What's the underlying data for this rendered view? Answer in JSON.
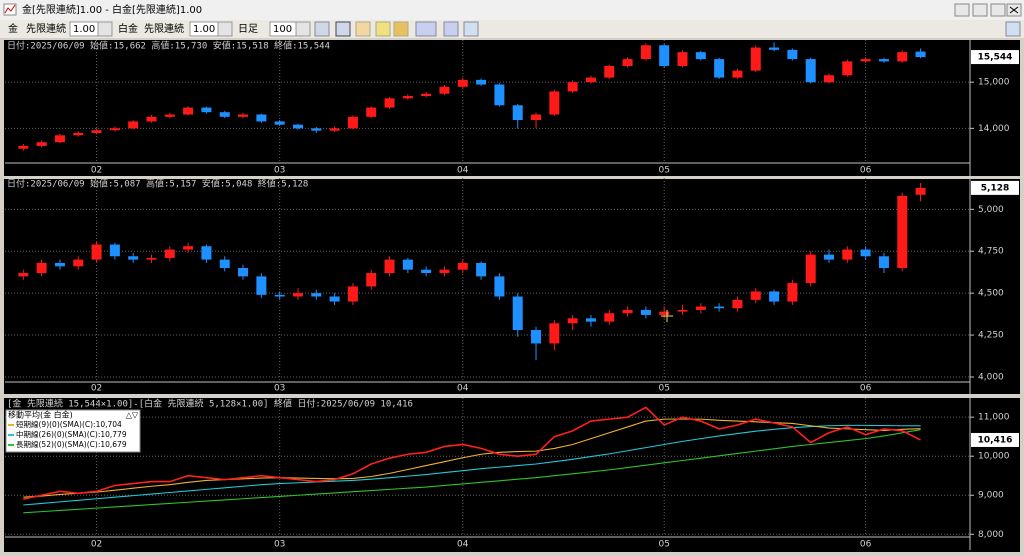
{
  "window": {
    "title": "金[先限連続]1.00 - 白金[先限連続]1.00"
  },
  "toolbar": {
    "symbol1": "金",
    "contract1": "先限連続",
    "multiplier1": "1.00",
    "symbol2": "白金",
    "contract2": "先限連続",
    "multiplier2": "1.00",
    "period": "日足",
    "count": "100"
  },
  "chart_data": [
    {
      "type": "candlestick",
      "header": "日付:2025/06/09 始値:15,662 高値:15,730 安値:15,518 終値:15,544",
      "last_label": "15,544",
      "categories": [
        null,
        null,
        null,
        null,
        "02",
        null,
        null,
        null,
        null,
        null,
        null,
        null,
        null,
        null,
        "03",
        null,
        null,
        null,
        null,
        null,
        null,
        null,
        null,
        null,
        "04",
        null,
        null,
        null,
        null,
        null,
        null,
        null,
        null,
        null,
        null,
        "05",
        null,
        null,
        null,
        null,
        null,
        null,
        null,
        null,
        null,
        null,
        "06",
        null,
        null,
        null
      ],
      "open": [
        13560,
        13620,
        13700,
        13850,
        13900,
        13960,
        14000,
        14150,
        14250,
        14300,
        14450,
        14350,
        14250,
        14300,
        14150,
        14080,
        14000,
        13950,
        14000,
        14250,
        14450,
        14650,
        14700,
        14750,
        14900,
        15050,
        14950,
        14500,
        14180,
        14300,
        14800,
        15000,
        15100,
        15350,
        15500,
        15800,
        15350,
        15650,
        15500,
        15100,
        15250,
        15750,
        15700,
        15500,
        15000,
        15150,
        15450,
        15500,
        15450,
        15662
      ],
      "high": [
        13660,
        13740,
        13880,
        13940,
        14000,
        14040,
        14180,
        14290,
        14340,
        14480,
        14470,
        14380,
        14340,
        14320,
        14180,
        14100,
        14030,
        14040,
        14280,
        14480,
        14680,
        14740,
        14790,
        14940,
        15090,
        15080,
        14980,
        14530,
        14340,
        14830,
        15040,
        15140,
        15380,
        15540,
        15840,
        15830,
        15690,
        15680,
        15530,
        15290,
        15790,
        15860,
        15730,
        15530,
        15190,
        15490,
        15540,
        15530,
        15690,
        15730
      ],
      "low": [
        13520,
        13590,
        13680,
        13820,
        13870,
        13930,
        13980,
        14120,
        14220,
        14280,
        14320,
        14220,
        14220,
        14120,
        14050,
        13970,
        13900,
        13920,
        13980,
        14220,
        14420,
        14620,
        14670,
        14720,
        14870,
        14920,
        14470,
        14000,
        14000,
        14270,
        14770,
        14970,
        15070,
        15320,
        15470,
        15320,
        15320,
        15470,
        15070,
        15070,
        15220,
        15670,
        15470,
        14970,
        14970,
        15120,
        15420,
        15420,
        15420,
        15518
      ],
      "close": [
        13620,
        13700,
        13850,
        13900,
        13960,
        14000,
        14150,
        14250,
        14300,
        14450,
        14350,
        14250,
        14300,
        14150,
        14080,
        14000,
        13950,
        14000,
        14250,
        14450,
        14650,
        14700,
        14750,
        14900,
        15050,
        14950,
        14500,
        14180,
        14300,
        14800,
        15000,
        15100,
        15350,
        15500,
        15800,
        15350,
        15650,
        15500,
        15100,
        15250,
        15750,
        15700,
        15500,
        15000,
        15150,
        15450,
        15500,
        15450,
        15650,
        15544
      ],
      "up_color": "#ff1a1a",
      "down_color": "#1e90ff",
      "ylim": [
        13250,
        15870
      ],
      "yticks": [
        {
          "value": 14000,
          "label": "14,000"
        },
        {
          "value": 15000,
          "label": "15,000"
        }
      ],
      "grid": true
    },
    {
      "type": "candlestick",
      "header": "日付:2025/06/09 始値:5,087 高値:5,157 安値:5,048 終値:5,128",
      "last_label": "5,128",
      "categories": [
        null,
        null,
        null,
        null,
        "02",
        null,
        null,
        null,
        null,
        null,
        null,
        null,
        null,
        null,
        "03",
        null,
        null,
        null,
        null,
        null,
        null,
        null,
        null,
        null,
        "04",
        null,
        null,
        null,
        null,
        null,
        null,
        null,
        null,
        null,
        null,
        "05",
        null,
        null,
        null,
        null,
        null,
        null,
        null,
        null,
        null,
        null,
        "06",
        null,
        null,
        null
      ],
      "open": [
        4600,
        4620,
        4680,
        4660,
        4700,
        4790,
        4720,
        4700,
        4710,
        4760,
        4780,
        4700,
        4650,
        4600,
        4490,
        4480,
        4500,
        4480,
        4450,
        4540,
        4620,
        4700,
        4640,
        4620,
        4640,
        4680,
        4600,
        4480,
        4280,
        4200,
        4320,
        4350,
        4330,
        4380,
        4400,
        4370,
        4390,
        4400,
        4420,
        4410,
        4460,
        4510,
        4450,
        4560,
        4730,
        4700,
        4760,
        4720,
        4650,
        5087
      ],
      "high": [
        4640,
        4700,
        4700,
        4720,
        4810,
        4800,
        4740,
        4730,
        4780,
        4800,
        4790,
        4720,
        4670,
        4620,
        4510,
        4530,
        4520,
        4500,
        4560,
        4640,
        4720,
        4710,
        4660,
        4660,
        4700,
        4690,
        4620,
        4500,
        4300,
        4340,
        4370,
        4370,
        4400,
        4420,
        4420,
        4420,
        4430,
        4440,
        4440,
        4480,
        4530,
        4520,
        4580,
        4750,
        4760,
        4780,
        4780,
        4740,
        5100,
        5157
      ],
      "low": [
        4580,
        4600,
        4640,
        4640,
        4680,
        4700,
        4680,
        4680,
        4690,
        4740,
        4680,
        4630,
        4580,
        4470,
        4460,
        4460,
        4460,
        4430,
        4430,
        4520,
        4600,
        4620,
        4600,
        4600,
        4620,
        4580,
        4460,
        4240,
        4100,
        4160,
        4280,
        4300,
        4310,
        4360,
        4350,
        4350,
        4370,
        4380,
        4390,
        4390,
        4440,
        4430,
        4430,
        4540,
        4680,
        4680,
        4700,
        4620,
        4630,
        5048
      ],
      "close": [
        4620,
        4680,
        4660,
        4700,
        4790,
        4720,
        4700,
        4710,
        4760,
        4780,
        4700,
        4650,
        4600,
        4490,
        4480,
        4500,
        4480,
        4450,
        4540,
        4620,
        4700,
        4640,
        4620,
        4640,
        4680,
        4600,
        4480,
        4280,
        4200,
        4320,
        4350,
        4330,
        4380,
        4400,
        4370,
        4390,
        4400,
        4420,
        4410,
        4460,
        4510,
        4450,
        4560,
        4730,
        4700,
        4760,
        4720,
        4650,
        5080,
        5128
      ],
      "up_color": "#ff1a1a",
      "down_color": "#1e90ff",
      "ylim": [
        3970,
        5175
      ],
      "yticks": [
        {
          "value": 4000,
          "label": "4,000"
        },
        {
          "value": 4250,
          "label": "4,250"
        },
        {
          "value": 4500,
          "label": "4,500"
        },
        {
          "value": 4750,
          "label": "4,750"
        },
        {
          "value": 5000,
          "label": "5,000"
        }
      ],
      "grid": true
    },
    {
      "type": "line",
      "header": "[金 先限連続 15,544×1.00]-[白金 先限連続 5,128×1.00] 終値 日付:2025/06/09 10,416",
      "last_label": "10,416",
      "legend_title": "移動平均(金 白金)",
      "legend_controls": "△▽",
      "categories": [
        null,
        null,
        null,
        null,
        "02",
        null,
        null,
        null,
        null,
        null,
        null,
        null,
        null,
        null,
        "03",
        null,
        null,
        null,
        null,
        null,
        null,
        null,
        null,
        null,
        "04",
        null,
        null,
        null,
        null,
        null,
        null,
        null,
        null,
        null,
        null,
        "05",
        null,
        null,
        null,
        null,
        null,
        null,
        null,
        null,
        null,
        null,
        "06",
        null,
        null,
        null
      ],
      "series": [
        {
          "color": "#ff2020",
          "values": [
            8900,
            9000,
            9100,
            9050,
            9100,
            9250,
            9300,
            9350,
            9350,
            9500,
            9450,
            9400,
            9450,
            9500,
            9450,
            9400,
            9350,
            9400,
            9550,
            9800,
            9950,
            10050,
            10100,
            10250,
            10300,
            10200,
            10050,
            10000,
            10050,
            10500,
            10650,
            10900,
            10950,
            11000,
            11250,
            10800,
            11000,
            10900,
            10700,
            10800,
            10950,
            10850,
            10750,
            10350,
            10600,
            10750,
            10550,
            10700,
            10650,
            10416
          ]
        },
        {
          "name": "短期線(9)(0)(SMA)(C):10,704",
          "color": "#f0b030",
          "values": [
            8950,
            8980,
            9020,
            9050,
            9080,
            9130,
            9180,
            9230,
            9270,
            9330,
            9380,
            9400,
            9420,
            9440,
            9450,
            9440,
            9430,
            9420,
            9430,
            9480,
            9560,
            9660,
            9760,
            9860,
            9960,
            10050,
            10100,
            10120,
            10130,
            10200,
            10300,
            10450,
            10600,
            10750,
            10900,
            10950,
            10950,
            10950,
            10920,
            10900,
            10880,
            10860,
            10840,
            10780,
            10720,
            10700,
            10680,
            10660,
            10690,
            10704
          ]
        },
        {
          "name": "中期線(26)(0)(SMA)(C):10,779",
          "color": "#20c8d8",
          "values": [
            8750,
            8790,
            8830,
            8870,
            8910,
            8950,
            8990,
            9030,
            9070,
            9110,
            9150,
            9190,
            9230,
            9270,
            9300,
            9320,
            9340,
            9360,
            9380,
            9410,
            9450,
            9490,
            9530,
            9580,
            9630,
            9680,
            9720,
            9760,
            9800,
            9860,
            9920,
            9990,
            10060,
            10140,
            10220,
            10300,
            10380,
            10450,
            10520,
            10580,
            10640,
            10690,
            10730,
            10760,
            10780,
            10790,
            10790,
            10785,
            10780,
            10779
          ]
        },
        {
          "name": "長期線(52)(0)(SMA)(C):10,679",
          "color": "#30c030",
          "values": [
            8550,
            8580,
            8610,
            8640,
            8670,
            8700,
            8730,
            8760,
            8790,
            8820,
            8850,
            8880,
            8910,
            8940,
            8970,
            9000,
            9030,
            9060,
            9090,
            9120,
            9150,
            9180,
            9210,
            9250,
            9290,
            9330,
            9370,
            9410,
            9450,
            9500,
            9550,
            9600,
            9650,
            9710,
            9770,
            9830,
            9890,
            9950,
            10010,
            10070,
            10130,
            10190,
            10250,
            10300,
            10350,
            10400,
            10450,
            10520,
            10600,
            10679
          ]
        }
      ],
      "ylim": [
        7930,
        11440
      ],
      "yticks": [
        {
          "value": 8000,
          "label": "8,000"
        },
        {
          "value": 9000,
          "label": "9,000"
        },
        {
          "value": 10000,
          "label": "10,000"
        },
        {
          "value": 11000,
          "label": "11,000"
        }
      ],
      "grid": true
    }
  ]
}
